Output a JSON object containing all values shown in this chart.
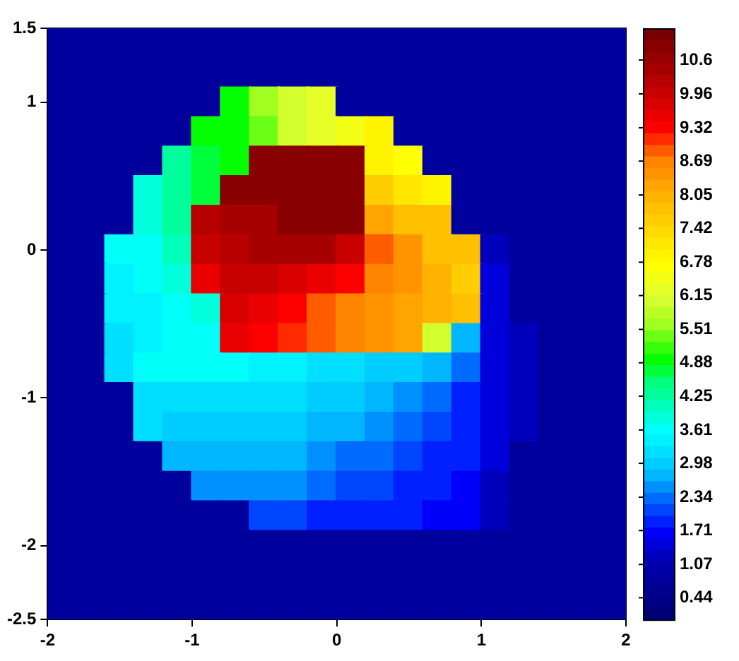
{
  "chart_data": {
    "type": "heatmap",
    "x": [
      -1.9,
      -1.7,
      -1.5,
      -1.3,
      -1.1,
      -0.9,
      -0.7,
      -0.5,
      -0.3,
      -0.1,
      0.1,
      0.3,
      0.5,
      0.7,
      0.9,
      1.1,
      1.3,
      1.5,
      1.7,
      1.9
    ],
    "xlim": [
      -2,
      2
    ],
    "xticks": [
      -2,
      -1,
      0,
      1,
      2
    ],
    "ylim": [
      -2.5,
      1.5
    ],
    "yticks": [
      -2.5,
      -2,
      -1,
      0,
      1,
      1.5
    ],
    "clim": [
      0.03,
      11.2
    ],
    "cticks": [
      0.44,
      1.07,
      1.71,
      2.34,
      2.98,
      3.61,
      4.25,
      4.88,
      5.51,
      6.15,
      6.78,
      7.42,
      8.05,
      8.69,
      9.32,
      9.96,
      10.6
    ],
    "legend": false,
    "cells": [
      [
        0.9,
        0.9,
        0.9,
        0.9,
        0.9,
        0.9,
        0.9,
        0.9,
        0.9,
        0.9,
        0.9,
        0.9,
        0.9,
        0.9,
        0.9,
        0.9,
        0.9,
        0.9,
        0.9,
        0.9
      ],
      [
        0.9,
        0.9,
        0.9,
        0.9,
        0.9,
        0.9,
        0.9,
        0.9,
        0.9,
        0.9,
        0.9,
        0.9,
        0.9,
        0.9,
        0.9,
        0.9,
        0.9,
        0.9,
        0.9,
        0.9
      ],
      [
        0.9,
        0.9,
        0.9,
        0.9,
        0.9,
        0.9,
        4.9,
        5.6,
        6.0,
        6.3,
        0.9,
        0.9,
        0.9,
        0.9,
        0.9,
        0.9,
        0.9,
        0.9,
        0.9,
        0.9
      ],
      [
        0.9,
        0.9,
        0.9,
        0.9,
        0.9,
        4.9,
        5.0,
        5.5,
        6.0,
        6.3,
        6.6,
        6.9,
        0.9,
        0.9,
        0.9,
        0.9,
        0.9,
        0.9,
        0.9,
        0.9
      ],
      [
        0.9,
        0.9,
        0.9,
        0.9,
        4.4,
        4.8,
        5.0,
        10.9,
        10.9,
        10.9,
        10.9,
        7.0,
        6.8,
        0.9,
        0.9,
        0.9,
        0.9,
        0.9,
        0.9,
        0.9
      ],
      [
        0.9,
        0.9,
        0.9,
        3.9,
        4.3,
        4.7,
        10.9,
        10.9,
        10.9,
        10.9,
        10.9,
        7.6,
        7.2,
        7.0,
        0.9,
        0.9,
        0.9,
        0.9,
        0.9,
        0.9
      ],
      [
        0.9,
        0.9,
        0.9,
        3.8,
        4.2,
        10.3,
        10.4,
        10.4,
        10.9,
        10.9,
        10.9,
        8.2,
        7.9,
        7.7,
        0.9,
        0.9,
        0.9,
        0.9,
        0.9,
        0.9
      ],
      [
        0.9,
        0.9,
        3.6,
        3.7,
        4.0,
        10.0,
        10.3,
        10.4,
        10.4,
        10.4,
        9.9,
        9.0,
        8.5,
        7.9,
        7.8,
        1.3,
        0.9,
        0.9,
        0.9,
        0.9
      ],
      [
        0.9,
        0.9,
        3.5,
        3.6,
        3.9,
        9.5,
        10.0,
        9.9,
        9.7,
        9.5,
        9.3,
        8.7,
        8.4,
        8.0,
        7.6,
        1.4,
        0.9,
        0.9,
        0.9,
        0.9
      ],
      [
        0.9,
        0.9,
        3.4,
        3.5,
        3.7,
        3.9,
        9.7,
        9.6,
        9.4,
        9.0,
        8.7,
        8.5,
        8.2,
        8.0,
        7.8,
        1.4,
        0.9,
        0.9,
        0.9,
        0.9
      ],
      [
        0.9,
        0.9,
        3.3,
        3.4,
        3.6,
        3.7,
        9.6,
        9.4,
        9.2,
        8.9,
        8.6,
        8.4,
        8.2,
        6.0,
        2.8,
        1.4,
        1.2,
        0.9,
        0.9,
        0.9
      ],
      [
        0.9,
        0.9,
        3.3,
        3.6,
        3.6,
        3.6,
        3.6,
        3.5,
        3.4,
        3.2,
        3.1,
        3.0,
        2.9,
        2.8,
        2.3,
        1.5,
        1.2,
        0.9,
        0.9,
        0.9
      ],
      [
        0.9,
        0.9,
        0.9,
        3.3,
        3.2,
        3.2,
        3.2,
        3.2,
        3.1,
        3.0,
        2.9,
        2.8,
        2.6,
        2.4,
        2.0,
        1.5,
        1.2,
        0.9,
        0.9,
        0.9
      ],
      [
        0.9,
        0.9,
        0.9,
        3.1,
        3.0,
        3.0,
        3.0,
        2.9,
        2.9,
        2.8,
        2.7,
        2.5,
        2.3,
        2.1,
        1.9,
        1.5,
        1.2,
        0.9,
        0.9,
        0.9
      ],
      [
        0.9,
        0.9,
        0.9,
        0.9,
        2.8,
        2.8,
        2.8,
        2.7,
        2.7,
        2.6,
        2.4,
        2.3,
        2.1,
        2.0,
        1.8,
        1.4,
        0.9,
        0.9,
        0.9,
        0.9
      ],
      [
        0.9,
        0.9,
        0.9,
        0.9,
        0.9,
        2.6,
        2.6,
        2.5,
        2.5,
        2.3,
        2.2,
        2.1,
        2.0,
        1.9,
        1.7,
        1.3,
        0.9,
        0.9,
        0.9,
        0.9
      ],
      [
        0.9,
        0.9,
        0.9,
        0.9,
        0.9,
        0.9,
        0.9,
        2.2,
        2.1,
        2.0,
        1.9,
        1.9,
        1.8,
        1.7,
        1.6,
        1.3,
        0.9,
        0.9,
        0.9,
        0.9
      ],
      [
        0.9,
        0.9,
        0.9,
        0.9,
        0.9,
        0.9,
        0.9,
        0.9,
        0.9,
        0.9,
        0.9,
        0.9,
        0.9,
        0.9,
        0.9,
        0.9,
        0.9,
        0.9,
        0.9,
        0.9
      ],
      [
        0.9,
        0.9,
        0.9,
        0.9,
        0.9,
        0.9,
        0.9,
        0.9,
        0.9,
        0.9,
        0.9,
        0.9,
        0.9,
        0.9,
        0.9,
        0.9,
        0.9,
        0.9,
        0.9,
        0.9
      ],
      [
        0.9,
        0.9,
        0.9,
        0.9,
        0.9,
        0.9,
        0.9,
        0.9,
        0.9,
        0.9,
        0.9,
        0.9,
        0.9,
        0.9,
        0.9,
        0.9,
        0.9,
        0.9,
        0.9,
        0.9
      ]
    ]
  }
}
